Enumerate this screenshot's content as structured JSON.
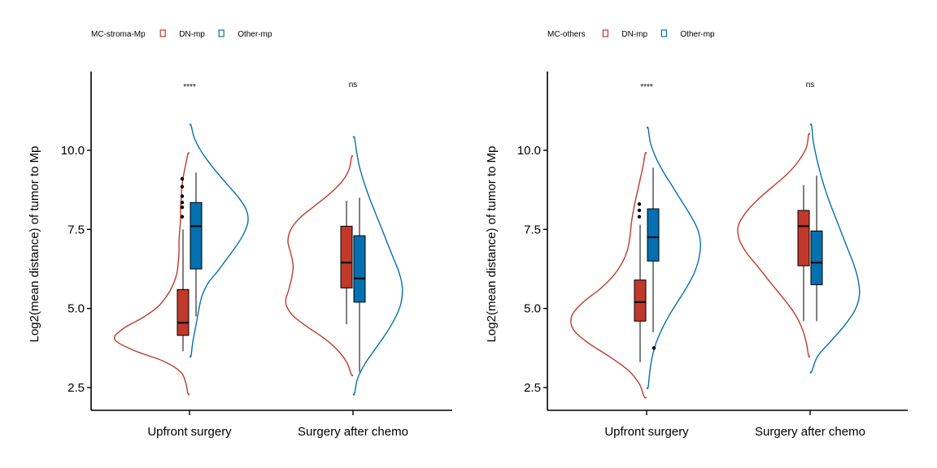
{
  "colors": {
    "dn": "#c0392b",
    "other": "#0570b0",
    "axis": "#000000"
  },
  "chart_data": [
    {
      "type": "violin",
      "legend_title": "MC-stroma-Mp",
      "legend": [
        "DN-mp",
        "Other-mp"
      ],
      "ylabel": "Log2(mean distance) of tumor to Mp",
      "xlabel": "",
      "yticks": [
        "2.5",
        "5.0",
        "7.5",
        "10.0"
      ],
      "ytick_values": [
        2.5,
        5.0,
        7.5,
        10.0
      ],
      "ylim": [
        1.8,
        12.4
      ],
      "categories": [
        "Upfront surgery",
        "Surgery after chemo"
      ],
      "significance": [
        "****",
        "ns"
      ],
      "groups": [
        {
          "dn": {
            "min": 3.65,
            "q1": 4.15,
            "median": 4.55,
            "q3": 5.6,
            "max": 7.5,
            "outliers": [
              7.9,
              8.2,
              8.35,
              8.55,
              8.85,
              9.1
            ],
            "vmin": 2.3,
            "vmax": 9.9,
            "density": [
              0.02,
              0.05,
              0.12,
              0.35,
              0.75,
              1.0,
              0.88,
              0.62,
              0.42,
              0.3,
              0.22,
              0.17,
              0.15,
              0.14,
              0.14,
              0.13,
              0.12,
              0.12,
              0.11,
              0.1,
              0.08,
              0.05,
              0.02
            ]
          },
          "other": {
            "min": 4.75,
            "q1": 6.25,
            "median": 7.6,
            "q3": 8.35,
            "max": 9.3,
            "outliers": [],
            "vmin": 3.5,
            "vmax": 10.8,
            "density": [
              0.02,
              0.04,
              0.07,
              0.1,
              0.13,
              0.17,
              0.25,
              0.38,
              0.5,
              0.62,
              0.72,
              0.78,
              0.76,
              0.66,
              0.52,
              0.38,
              0.25,
              0.14,
              0.06,
              0.02
            ]
          }
        },
        {
          "dn": {
            "min": 4.5,
            "q1": 5.65,
            "median": 6.45,
            "q3": 7.6,
            "max": 8.4,
            "outliers": [],
            "vmin": 2.9,
            "vmax": 9.8,
            "density": [
              0.02,
              0.08,
              0.2,
              0.38,
              0.62,
              0.82,
              0.9,
              0.86,
              0.82,
              0.8,
              0.83,
              0.87,
              0.83,
              0.7,
              0.5,
              0.3,
              0.14,
              0.05,
              0.02
            ]
          },
          "other": {
            "min": 3.0,
            "q1": 5.2,
            "median": 5.95,
            "q3": 7.3,
            "max": 8.5,
            "outliers": [],
            "vmin": 2.3,
            "vmax": 10.4,
            "density": [
              0.02,
              0.06,
              0.16,
              0.3,
              0.44,
              0.56,
              0.64,
              0.66,
              0.62,
              0.54,
              0.46,
              0.38,
              0.3,
              0.22,
              0.15,
              0.09,
              0.05,
              0.02
            ]
          }
        }
      ]
    },
    {
      "type": "violin",
      "legend_title": "MC-others",
      "legend": [
        "DN-mp",
        "Other-mp"
      ],
      "ylabel": "Log2(mean distance) of tumor to Mp",
      "xlabel": "",
      "yticks": [
        "2.5",
        "5.0",
        "7.5",
        "10.0"
      ],
      "ytick_values": [
        2.5,
        5.0,
        7.5,
        10.0
      ],
      "ylim": [
        1.8,
        12.4
      ],
      "categories": [
        "Upfront surgery",
        "Surgery after chemo"
      ],
      "significance": [
        "****",
        "ns"
      ],
      "groups": [
        {
          "dn": {
            "min": 3.3,
            "q1": 4.6,
            "median": 5.2,
            "q3": 5.9,
            "max": 7.65,
            "outliers": [
              7.9,
              8.1,
              8.3
            ],
            "vmin": 2.2,
            "vmax": 9.9,
            "density": [
              0.03,
              0.1,
              0.25,
              0.5,
              0.78,
              0.98,
              1.0,
              0.85,
              0.62,
              0.44,
              0.32,
              0.25,
              0.22,
              0.2,
              0.17,
              0.13,
              0.09,
              0.05,
              0.02
            ]
          },
          "other": {
            "min": 4.25,
            "q1": 6.5,
            "median": 7.25,
            "q3": 8.15,
            "max": 9.45,
            "outliers": [
              3.75
            ],
            "vmin": 2.5,
            "vmax": 10.7,
            "density": [
              0.02,
              0.04,
              0.07,
              0.12,
              0.2,
              0.3,
              0.42,
              0.54,
              0.64,
              0.7,
              0.72,
              0.68,
              0.58,
              0.46,
              0.34,
              0.22,
              0.12,
              0.05,
              0.02
            ]
          }
        },
        {
          "dn": {
            "min": 4.6,
            "q1": 6.35,
            "median": 7.6,
            "q3": 8.1,
            "max": 8.9,
            "outliers": [],
            "vmin": 3.5,
            "vmax": 10.5,
            "density": [
              0.02,
              0.05,
              0.1,
              0.18,
              0.3,
              0.44,
              0.58,
              0.72,
              0.86,
              0.95,
              0.96,
              0.86,
              0.7,
              0.5,
              0.3,
              0.15,
              0.05,
              0.02
            ]
          },
          "other": {
            "min": 4.6,
            "q1": 5.75,
            "median": 6.45,
            "q3": 7.45,
            "max": 9.2,
            "outliers": [],
            "vmin": 3.0,
            "vmax": 10.8,
            "density": [
              0.02,
              0.1,
              0.28,
              0.46,
              0.6,
              0.66,
              0.64,
              0.58,
              0.5,
              0.42,
              0.34,
              0.26,
              0.19,
              0.13,
              0.08,
              0.04,
              0.02
            ]
          }
        }
      ]
    }
  ]
}
